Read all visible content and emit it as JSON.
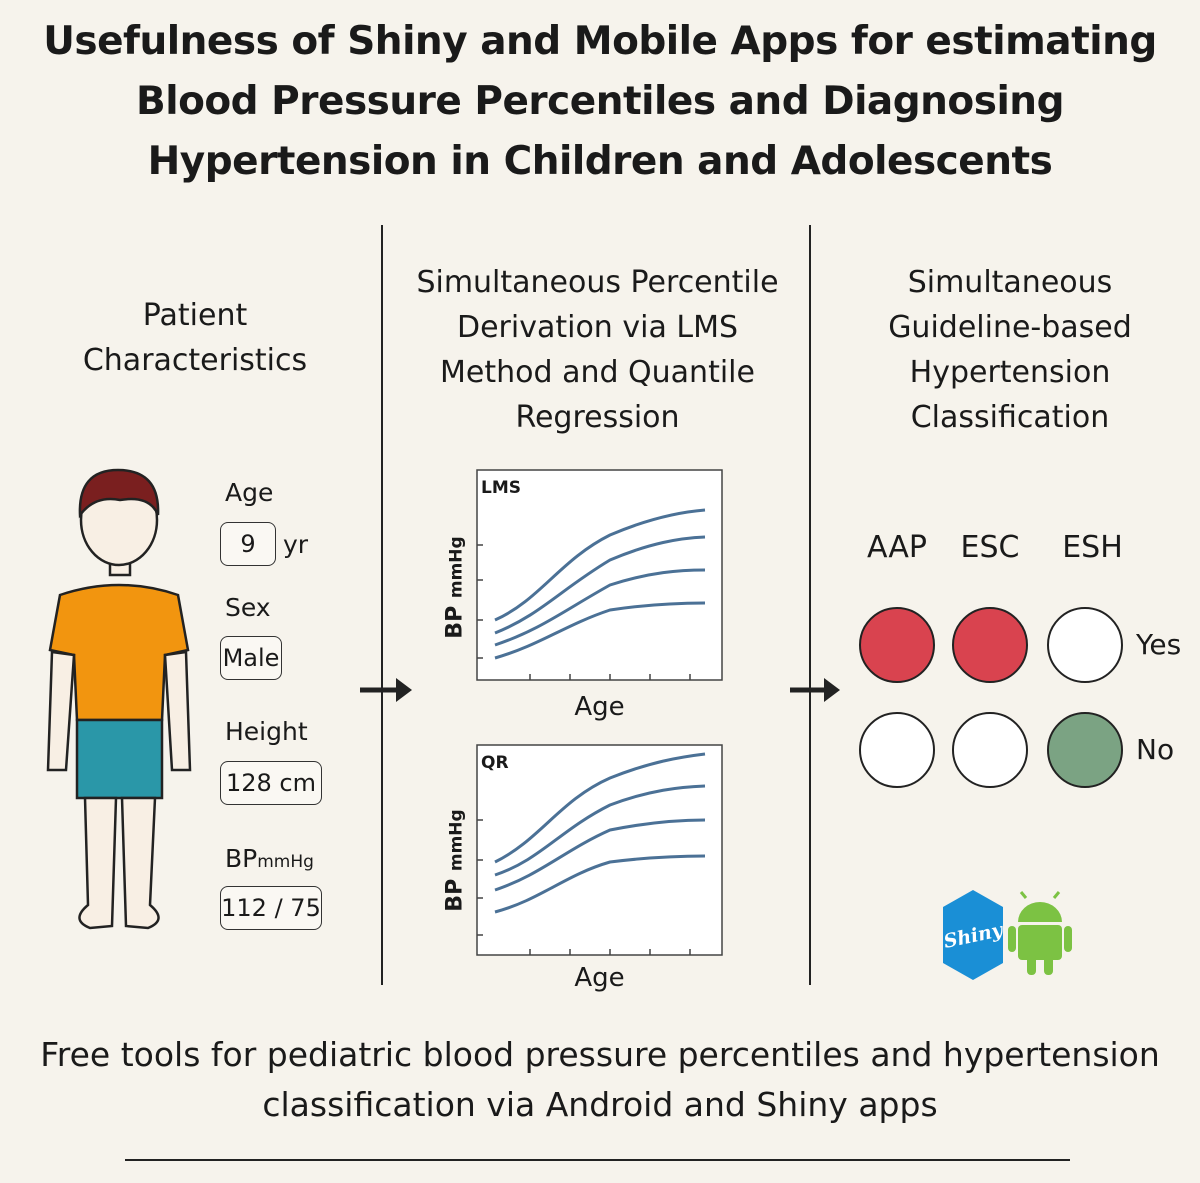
{
  "title": "Usefulness of Shiny and Mobile Apps for estimating Blood Pressure Percentiles and Diagnosing Hypertension in Children and Adolescents",
  "columns": [
    "Patient Characteristics",
    "Simultaneous Percentile Derivation via LMS Method and Quantile Regression",
    "Simultaneous Guideline-based Hypertension Classification"
  ],
  "patient": [
    {
      "label": "Age",
      "value": "9",
      "unit": "yr"
    },
    {
      "label": "Sex",
      "value": "Male"
    },
    {
      "label": "Height",
      "value": "128 cm"
    },
    {
      "label": "BP",
      "unit": "mmHg",
      "value": "112 / 75"
    }
  ],
  "plots": [
    {
      "tag": "LMS",
      "y_label": "BP",
      "y_unit": "mmHg",
      "x_label": "Age"
    },
    {
      "tag": "QR",
      "y_label": "BP",
      "y_unit": "mmHg",
      "x_label": "Age"
    }
  ],
  "guidelines": [
    "AAP",
    "ESC",
    "ESH"
  ],
  "answers": [
    "Yes",
    "No"
  ],
  "logo": "Shiny",
  "footer": "Free tools for pediatric blood pressure percentiles and hypertension classification via Android and Shiny apps"
}
